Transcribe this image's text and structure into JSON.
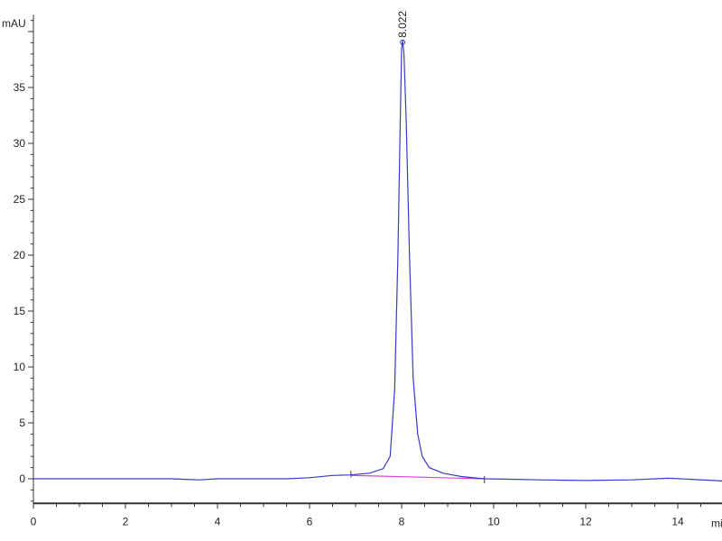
{
  "chart_data": {
    "type": "line",
    "title": "",
    "xlabel": "min",
    "ylabel": "mAU",
    "xlim": [
      0,
      15
    ],
    "ylim": [
      -2.2,
      41.5
    ],
    "x_ticks": [
      0,
      2,
      4,
      6,
      8,
      10,
      12,
      14
    ],
    "y_ticks": [
      0,
      5,
      10,
      15,
      20,
      25,
      30,
      35
    ],
    "grid": false,
    "colors": {
      "trace": "#3a3ac8",
      "baseline": "#e040e0",
      "axis": "#333333"
    },
    "series": [
      {
        "x": [
          0,
          1,
          2,
          3,
          3.3,
          3.6,
          4,
          5,
          5.5,
          6,
          6.5,
          6.9,
          7.3,
          7.6,
          7.75,
          7.85,
          7.92,
          7.97,
          8.0,
          8.022,
          8.05,
          8.1,
          8.17,
          8.25,
          8.35,
          8.45,
          8.6,
          8.9,
          9.3,
          9.8,
          10.5,
          11,
          12,
          13,
          13.8,
          14.3,
          15
        ],
        "y": [
          0,
          0,
          0,
          0,
          -0.05,
          -0.1,
          0,
          0,
          0,
          0.1,
          0.3,
          0.35,
          0.5,
          0.9,
          2,
          8,
          20,
          32,
          38.5,
          39.2,
          38,
          32,
          20,
          9,
          4,
          2,
          1,
          0.5,
          0.2,
          0,
          -0.05,
          -0.1,
          -0.15,
          -0.1,
          0.05,
          -0.05,
          -0.2
        ]
      }
    ],
    "integration_baseline": {
      "x": [
        6.9,
        9.8
      ],
      "y": [
        0.3,
        0
      ]
    },
    "annotations": [
      {
        "label": "8.022",
        "x": 8.022,
        "y": 39.2
      }
    ]
  }
}
